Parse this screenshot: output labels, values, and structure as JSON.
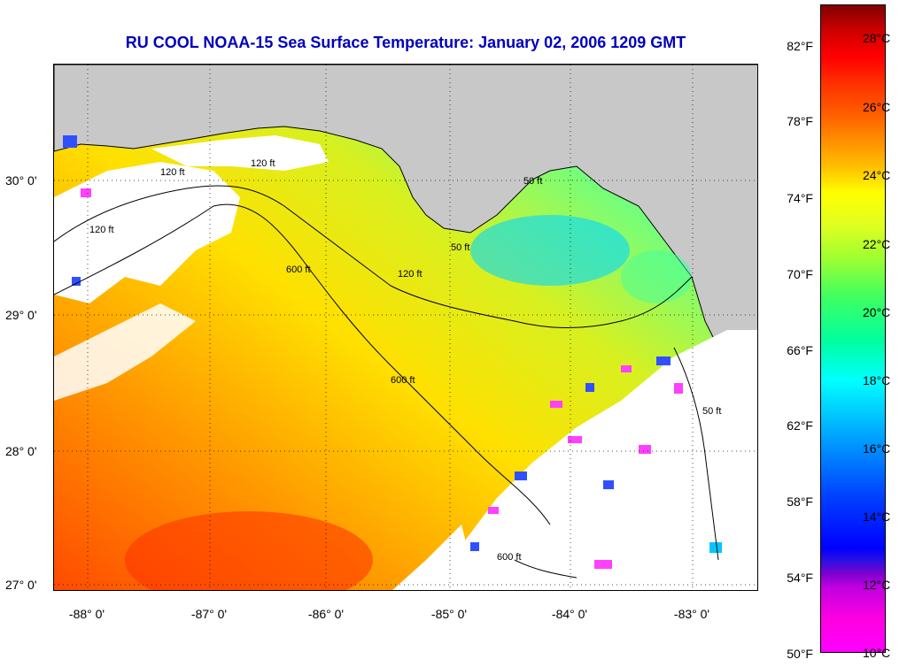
{
  "title": "RU COOL  NOAA-15  Sea Surface Temperature:  January 02, 2006 1209 GMT",
  "map": {
    "lat_ticks": [
      "30° 0'",
      "29° 0'",
      "28° 0'",
      "27° 0'"
    ],
    "lon_ticks": [
      "-88° 0'",
      "-87° 0'",
      "-86° 0'",
      "-85° 0'",
      "-84° 0'",
      "-83° 0'"
    ],
    "contours": [
      "120 ft",
      "120 ft",
      "120 ft",
      "120 ft",
      "50 ft",
      "50 ft",
      "600 ft",
      "600 ft",
      "600 ft",
      "50 ft"
    ],
    "colors": {
      "land": "#c8c8c8",
      "cloud": "#ffffff",
      "warm": "#ff5a00",
      "mid": "#ffb400",
      "cool": "#e6f000",
      "cold": "#5aff8c",
      "coldest": "#00c8ff",
      "cloud_edge": "#ff40ff"
    }
  },
  "colorbar": {
    "fahrenheit": [
      "82°F",
      "78°F",
      "74°F",
      "70°F",
      "66°F",
      "62°F",
      "58°F",
      "54°F",
      "50°F"
    ],
    "celsius": [
      "28°C",
      "26°C",
      "24°C",
      "22°C",
      "20°C",
      "18°C",
      "16°C",
      "14°C",
      "12°C",
      "10°C"
    ]
  }
}
